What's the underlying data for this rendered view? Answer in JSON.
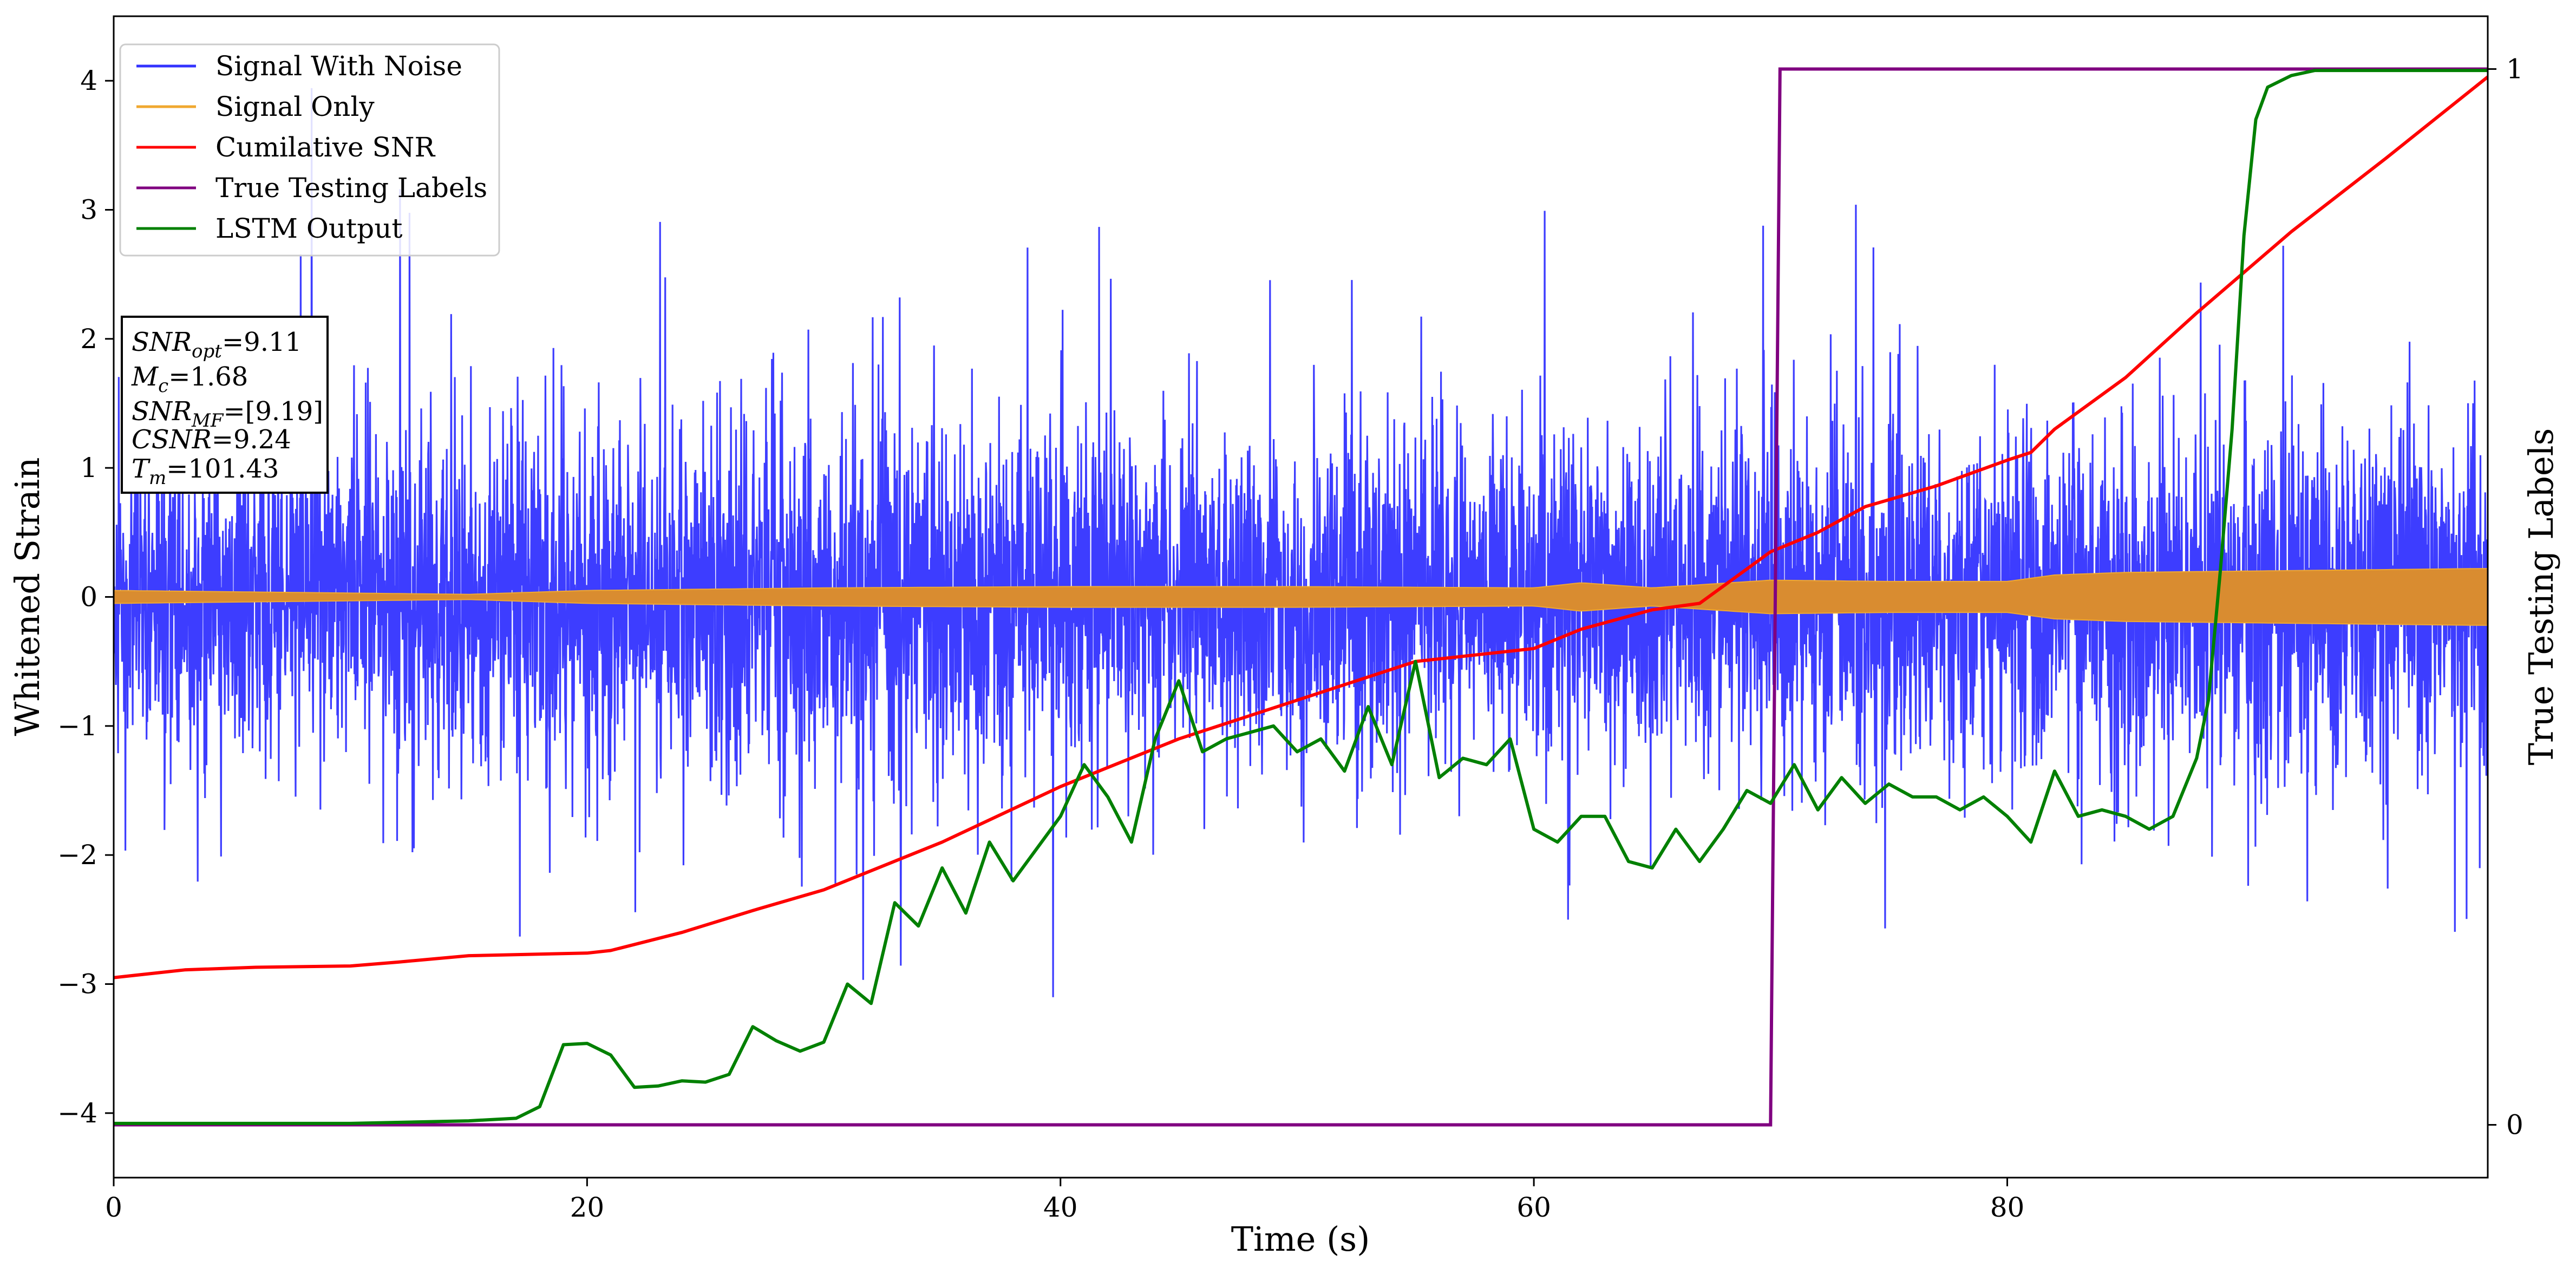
{
  "chart_data": {
    "type": "line",
    "xlabel": "Time (s)",
    "ylabel": "Whitened Strain",
    "y2label": "True Testing Labels",
    "xlim": [
      0,
      100.3
    ],
    "ylim": [
      -4.5,
      4.5
    ],
    "y2lim": [
      -0.05,
      1.05
    ],
    "xticks": [
      0,
      20,
      40,
      60,
      80
    ],
    "yticks": [
      -4,
      -3,
      -2,
      -1,
      0,
      1,
      2,
      3,
      4
    ],
    "y2ticks": [
      0,
      1
    ],
    "grid": false,
    "legend_position": "top-left",
    "colors": {
      "signal_with_noise": "#3333ff",
      "signal_only": "#f0a830",
      "cumulative_snr": "#ff0000",
      "true_labels": "#800080",
      "lstm_output": "#008000"
    },
    "series": [
      {
        "name": "Signal With Noise",
        "kind": "noise",
        "axis": "left",
        "envelope_x": [
          0,
          10,
          20,
          30,
          40,
          50,
          60,
          70,
          80,
          90,
          100
        ],
        "envelope_low": [
          -2.7,
          -2.9,
          -2.8,
          -3.3,
          -3.0,
          -2.7,
          -2.9,
          -2.8,
          -2.9,
          -3.0,
          -3.1
        ],
        "envelope_high": [
          2.7,
          2.8,
          2.9,
          3.3,
          3.0,
          2.9,
          2.9,
          2.9,
          2.9,
          2.8,
          3.0
        ]
      },
      {
        "name": "Signal Only",
        "kind": "band",
        "axis": "left",
        "x": [
          0,
          10,
          15,
          20,
          30,
          40,
          50,
          60,
          62,
          65,
          70,
          75,
          80,
          82,
          85,
          90,
          100
        ],
        "amplitude": [
          0.05,
          0.03,
          0.02,
          0.05,
          0.07,
          0.08,
          0.08,
          0.07,
          0.11,
          0.07,
          0.13,
          0.12,
          0.12,
          0.17,
          0.19,
          0.2,
          0.22
        ]
      },
      {
        "name": "Cumilative SNR",
        "axis": "left",
        "x": [
          0,
          3,
          6,
          10,
          12,
          15,
          20,
          21,
          24,
          27,
          30,
          35,
          40,
          45,
          50,
          55,
          60,
          62,
          65,
          67,
          70,
          72,
          74,
          77,
          80,
          81,
          82,
          85,
          88,
          92,
          96,
          100.3
        ],
        "y": [
          -2.95,
          -2.89,
          -2.87,
          -2.86,
          -2.83,
          -2.78,
          -2.76,
          -2.74,
          -2.6,
          -2.43,
          -2.27,
          -1.9,
          -1.47,
          -1.1,
          -0.8,
          -0.5,
          -0.4,
          -0.25,
          -0.1,
          -0.05,
          0.35,
          0.5,
          0.7,
          0.86,
          1.06,
          1.12,
          1.3,
          1.7,
          2.2,
          2.83,
          3.4,
          4.03
        ]
      },
      {
        "name": "True Testing Labels",
        "axis": "right",
        "x": [
          0,
          70.0,
          70.4,
          100.3
        ],
        "y": [
          0,
          0,
          1,
          1
        ]
      },
      {
        "name": "LSTM Output",
        "axis": "left",
        "x": [
          0,
          5,
          10,
          15,
          17,
          18,
          19,
          20,
          21,
          22,
          23,
          24,
          25,
          26,
          27,
          28,
          29,
          30,
          31,
          32,
          33,
          34,
          35,
          36,
          37,
          38,
          39,
          40,
          41,
          42,
          43,
          44,
          45,
          46,
          47,
          48,
          49,
          50,
          51,
          52,
          53,
          54,
          55,
          56,
          57,
          58,
          59,
          60,
          61,
          62,
          63,
          64,
          65,
          66,
          67,
          68,
          69,
          70,
          71,
          72,
          73,
          74,
          75,
          76,
          77,
          78,
          79,
          80,
          81,
          82,
          83,
          84,
          85,
          86,
          87,
          88,
          88.5,
          89,
          89.5,
          90,
          90.5,
          91,
          92,
          93,
          95,
          100.3
        ],
        "y": [
          -4.08,
          -4.08,
          -4.08,
          -4.06,
          -4.04,
          -3.95,
          -3.47,
          -3.46,
          -3.55,
          -3.8,
          -3.79,
          -3.75,
          -3.76,
          -3.7,
          -3.33,
          -3.44,
          -3.52,
          -3.45,
          -3.0,
          -3.15,
          -2.37,
          -2.55,
          -2.1,
          -2.45,
          -1.9,
          -2.2,
          -1.95,
          -1.7,
          -1.3,
          -1.55,
          -1.9,
          -1.1,
          -0.65,
          -1.2,
          -1.1,
          -1.05,
          -1.0,
          -1.2,
          -1.1,
          -1.35,
          -0.85,
          -1.3,
          -0.5,
          -1.4,
          -1.25,
          -1.3,
          -1.1,
          -1.8,
          -1.9,
          -1.7,
          -1.7,
          -2.05,
          -2.1,
          -1.8,
          -2.05,
          -1.8,
          -1.5,
          -1.6,
          -1.3,
          -1.65,
          -1.4,
          -1.6,
          -1.45,
          -1.55,
          -1.55,
          -1.65,
          -1.55,
          -1.7,
          -1.9,
          -1.35,
          -1.7,
          -1.65,
          -1.7,
          -1.8,
          -1.7,
          -1.25,
          -0.8,
          0.2,
          1.3,
          2.8,
          3.7,
          3.95,
          4.04,
          4.08,
          4.08,
          4.08
        ]
      }
    ],
    "annotation_box": {
      "lines": [
        {
          "sym": "SNR",
          "sub": "opt",
          "value": "=9.11"
        },
        {
          "sym": "M",
          "sub": "c",
          "value": "=1.68"
        },
        {
          "sym": "SNR",
          "sub": "MF",
          "value": "=[9.19]"
        },
        {
          "sym": "CSNR",
          "sub": "",
          "value": "=9.24"
        },
        {
          "sym": "T",
          "sub": "m",
          "value": "=101.43"
        }
      ]
    }
  }
}
